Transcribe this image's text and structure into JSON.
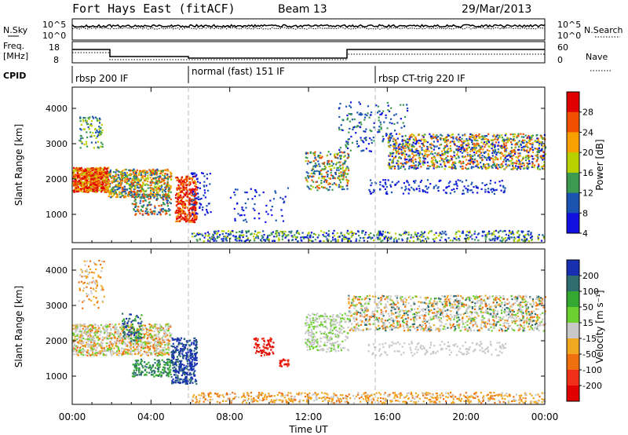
{
  "header": {
    "station": "Fort Hays East (fitACF)",
    "beam": "Beam 13",
    "date": "29/Mar/2013"
  },
  "sky_panel": {
    "left_label": "N.Sky",
    "left_ticks": [
      "10^5",
      "10^0"
    ],
    "right_ticks": [
      "10^5",
      "10^0"
    ],
    "right_label": "N.Search"
  },
  "freq_panel": {
    "left_label_1": "Freq.",
    "left_label_2": "[MHz]",
    "left_ticks": [
      "18",
      "8"
    ],
    "right_ticks": [
      "60",
      "0"
    ],
    "right_label": "Nave"
  },
  "cpid": {
    "label": "CPID",
    "modes": [
      {
        "name": "rbsp 200 IF",
        "start_h": 0,
        "end_h": 6
      },
      {
        "name": "normal (fast) 151 IF",
        "start_h": 6,
        "end_h": 15.5
      },
      {
        "name": "rbsp CT-trig 220 IF",
        "start_h": 15.5,
        "end_h": 24
      }
    ]
  },
  "power_colorbar": {
    "label": "Power [dB]",
    "ticks": [
      "28",
      "24",
      "20",
      "16",
      "12",
      "8",
      "4"
    ],
    "colors": [
      "#e00000",
      "#f05000",
      "#f8a000",
      "#b8d000",
      "#3c9a50",
      "#1a54b0",
      "#1010e0"
    ]
  },
  "velocity_colorbar": {
    "label": "Velocity [m s⁻¹]",
    "ticks": [
      "200",
      "100",
      "50",
      "15",
      "-15",
      "-50",
      "-100",
      "-200"
    ],
    "colors": [
      "#1830b0",
      "#2e6c70",
      "#34a830",
      "#6cd030",
      "#c8c8c8",
      "#f0a820",
      "#f07010",
      "#f03018",
      "#e00000"
    ]
  },
  "chart_data": [
    {
      "type": "heatmap",
      "panel": "power",
      "ylabel": "Slant Range [km]",
      "yticks": [
        "4000",
        "3000",
        "2000",
        "1000"
      ],
      "xlim": [
        0,
        24
      ],
      "ylim": [
        200,
        4600
      ],
      "regions": [
        {
          "x": [
            0.0,
            1.8
          ],
          "y": [
            1600,
            2400
          ],
          "level": "high"
        },
        {
          "x": [
            1.8,
            5.0
          ],
          "y": [
            1500,
            2300
          ],
          "level": "mid"
        },
        {
          "x": [
            5.2,
            6.3
          ],
          "y": [
            800,
            2100
          ],
          "level": "high"
        },
        {
          "x": [
            11.8,
            14.0
          ],
          "y": [
            1700,
            2800
          ],
          "level": "mid"
        },
        {
          "x": [
            16.0,
            24.0
          ],
          "y": [
            2300,
            3300
          ],
          "level": "mid"
        }
      ]
    },
    {
      "type": "heatmap",
      "panel": "velocity",
      "ylabel": "Slant Range [km]",
      "yticks": [
        "4000",
        "3000",
        "2000",
        "1000"
      ],
      "xlim": [
        0,
        24
      ],
      "ylim": [
        200,
        4600
      ],
      "regions": [
        {
          "x": [
            0.0,
            5.0
          ],
          "y": [
            1600,
            2500
          ],
          "velocity": "-15 to 15"
        },
        {
          "x": [
            5.0,
            6.3
          ],
          "y": [
            800,
            2100
          ],
          "velocity": "50 to 200"
        },
        {
          "x": [
            9.0,
            10.5
          ],
          "y": [
            1300,
            2100
          ],
          "velocity": "-200"
        },
        {
          "x": [
            11.8,
            24.0
          ],
          "y": [
            1700,
            3300
          ],
          "velocity": "-15 to 15"
        }
      ]
    }
  ],
  "x_axis": {
    "ticks": [
      "00:00",
      "04:00",
      "08:00",
      "12:00",
      "16:00",
      "20:00",
      "00:00"
    ],
    "label": "Time UT"
  }
}
